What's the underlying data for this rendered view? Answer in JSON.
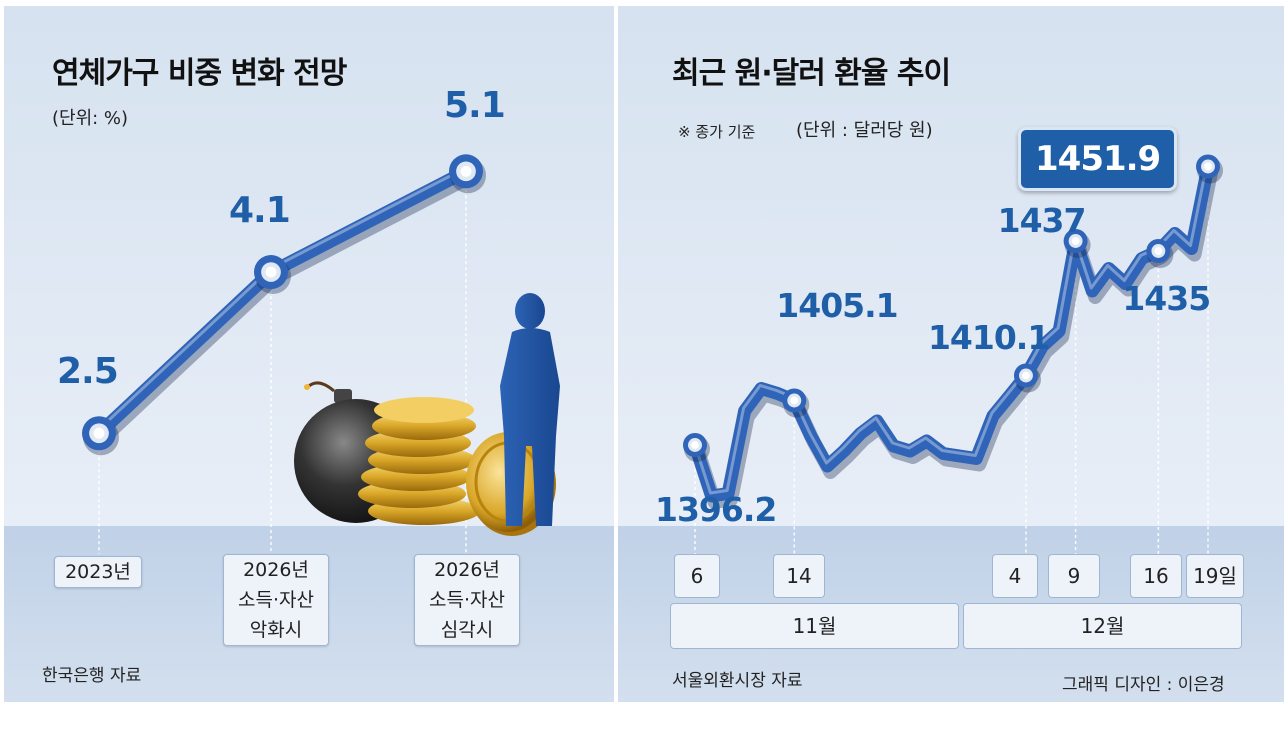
{
  "left_chart": {
    "title": "연체가구 비중 변화 전망",
    "unit": "(단위: %)",
    "source": "한국은행 자료",
    "chart_data": {
      "type": "line",
      "title": "연체가구 비중 변화 전망",
      "unit": "(단위: %)",
      "categories": [
        "2023년",
        "2026년 소득·자산 악화시",
        "2026년 소득·자산 심각시"
      ],
      "category_lines": [
        [
          "2023년"
        ],
        [
          "2026년",
          "소득·자산",
          "악화시"
        ],
        [
          "2026년",
          "소득·자산",
          "심각시"
        ]
      ],
      "values": [
        2.5,
        4.1,
        5.1
      ],
      "value_labels": [
        "2.5",
        "4.1",
        "5.1"
      ],
      "ylim": [
        1.5,
        5.5
      ],
      "grid": false,
      "line_color": "#2f64b8"
    }
  },
  "right_chart": {
    "title": "최근 원·달러 환율 추이",
    "note": "※ 종가 기준",
    "unit": "(단위 : 달러당 원)",
    "source": "서울외환시장 자료",
    "credit": "그래픽 디자인 : 이은경",
    "months": [
      "11월",
      "12월"
    ],
    "chart_data": {
      "type": "line",
      "title": "최근 원·달러 환율 추이",
      "note": "※ 종가 기준",
      "unit": "(단위 : 달러당 원)",
      "x_ticks": [
        "6",
        "14",
        "4",
        "9",
        "16",
        "19일"
      ],
      "month_groups": [
        "11월",
        "12월"
      ],
      "points": [
        {
          "date": "11-6",
          "value": 1396.2,
          "label": "1396.2"
        },
        {
          "date": "11-7",
          "value": 1386.0
        },
        {
          "date": "11-8",
          "value": 1386.5
        },
        {
          "date": "11-11",
          "value": 1403.0
        },
        {
          "date": "11-12",
          "value": 1407.5
        },
        {
          "date": "11-13",
          "value": 1406.5
        },
        {
          "date": "11-14",
          "value": 1405.1,
          "label": "1405.1"
        },
        {
          "date": "11-15",
          "value": 1398.0
        },
        {
          "date": "11-18",
          "value": 1392.0
        },
        {
          "date": "11-19",
          "value": 1395.0
        },
        {
          "date": "11-20",
          "value": 1398.5
        },
        {
          "date": "11-21",
          "value": 1401.0
        },
        {
          "date": "11-22",
          "value": 1396.0
        },
        {
          "date": "11-25",
          "value": 1395.0
        },
        {
          "date": "11-26",
          "value": 1397.0
        },
        {
          "date": "11-27",
          "value": 1394.5
        },
        {
          "date": "11-28",
          "value": 1394.0
        },
        {
          "date": "11-29",
          "value": 1393.5
        },
        {
          "date": "12-2",
          "value": 1402.0
        },
        {
          "date": "12-3",
          "value": 1406.0
        },
        {
          "date": "12-4",
          "value": 1410.1,
          "label": "1410.1"
        },
        {
          "date": "12-5",
          "value": 1416.0
        },
        {
          "date": "12-6",
          "value": 1419.0
        },
        {
          "date": "12-9",
          "value": 1437.0,
          "label": "1437"
        },
        {
          "date": "12-10",
          "value": 1427.0
        },
        {
          "date": "12-11",
          "value": 1431.5
        },
        {
          "date": "12-12",
          "value": 1428.5
        },
        {
          "date": "12-13",
          "value": 1433.5
        },
        {
          "date": "12-16",
          "value": 1435.0,
          "label": "1435"
        },
        {
          "date": "12-17",
          "value": 1438.5
        },
        {
          "date": "12-18",
          "value": 1435.5
        },
        {
          "date": "12-19",
          "value": 1451.9,
          "label": "1451.9",
          "highlight": true
        }
      ],
      "ylim": [
        1380,
        1460
      ],
      "grid": false,
      "line_color": "#2f64b8"
    }
  }
}
